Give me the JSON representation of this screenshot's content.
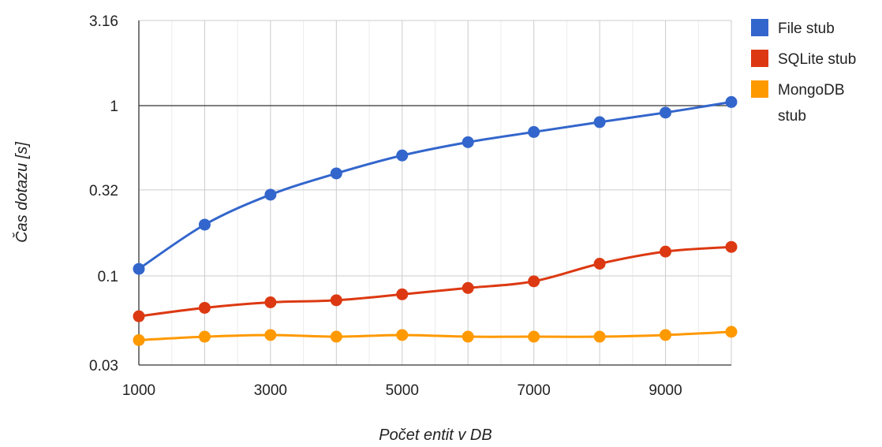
{
  "chart_data": {
    "type": "line",
    "title": "",
    "xlabel": "Počet entit v DB",
    "ylabel": "Čas dotazu [s]",
    "y_scale": "log",
    "xlim": [
      1000,
      10000
    ],
    "ylim": [
      0.03,
      3.16
    ],
    "x_ticks": [
      "1000",
      "3000",
      "5000",
      "7000",
      "9000"
    ],
    "y_ticks": [
      "3.16",
      "1",
      "0.32",
      "0.1",
      "0.03"
    ],
    "grid": true,
    "legend_position": "right",
    "x": [
      1000,
      2000,
      3000,
      4000,
      5000,
      6000,
      7000,
      8000,
      9000,
      10000
    ],
    "series": [
      {
        "name": "File stub",
        "legend": "File stub",
        "color": "#3366cc",
        "values": [
          0.11,
          0.2,
          0.3,
          0.4,
          0.51,
          0.61,
          0.7,
          0.8,
          0.91,
          1.05
        ]
      },
      {
        "name": "SQLite stub",
        "legend": "SQLite stub",
        "color": "#dc3912",
        "values": [
          0.058,
          0.065,
          0.07,
          0.072,
          0.078,
          0.085,
          0.093,
          0.118,
          0.139,
          0.148
        ]
      },
      {
        "name": "MongoDB stub",
        "legend": "MongoDB\nstub",
        "color": "#ff9900",
        "values": [
          0.042,
          0.044,
          0.045,
          0.044,
          0.045,
          0.044,
          0.044,
          0.044,
          0.045,
          0.047
        ]
      }
    ]
  }
}
